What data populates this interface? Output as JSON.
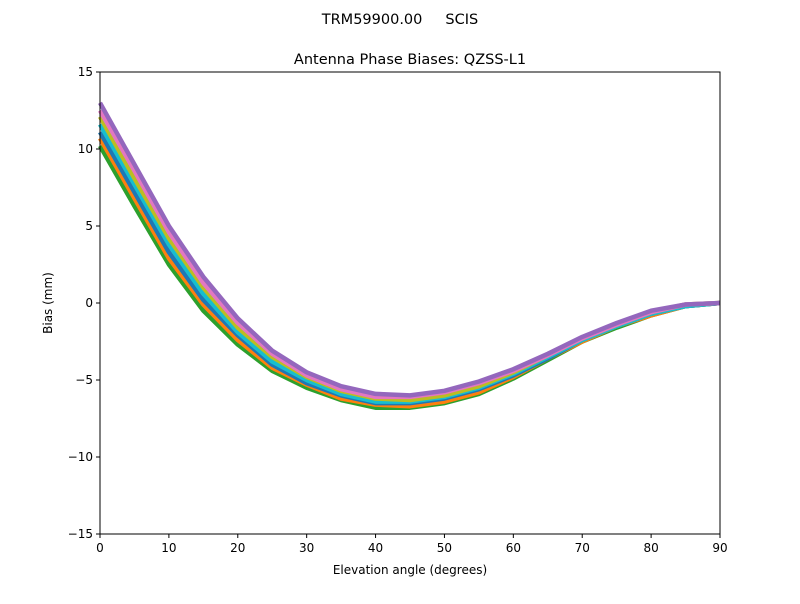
{
  "chart_data": {
    "type": "line",
    "suptitle": "TRM59900.00     SCIS",
    "title": "Antenna Phase Biases: QZSS-L1",
    "xlabel": "Elevation angle (degrees)",
    "ylabel": "Bias (mm)",
    "xlim": [
      0,
      90
    ],
    "ylim": [
      -15,
      15
    ],
    "xticks": [
      0,
      10,
      20,
      30,
      40,
      50,
      60,
      70,
      80,
      90
    ],
    "yticks": [
      -15,
      -10,
      -5,
      0,
      5,
      10,
      15
    ],
    "ytick_labels": [
      "−15",
      "−10",
      "−5",
      "0",
      "5",
      "10",
      "15"
    ],
    "grid": false,
    "colors": [
      "#2ca02c",
      "#ff7f0e",
      "#1f77b4",
      "#17becf",
      "#bcbd22",
      "#e377c2",
      "#9467bd"
    ],
    "x": [
      0,
      5,
      10,
      15,
      20,
      25,
      30,
      35,
      40,
      45,
      50,
      55,
      60,
      65,
      70,
      75,
      80,
      85,
      90
    ],
    "series": [
      {
        "values": [
          10.2,
          6.3,
          2.5,
          -0.5,
          -2.7,
          -4.4,
          -5.5,
          -6.3,
          -6.8,
          -6.8,
          -6.5,
          -5.9,
          -4.9,
          -3.7,
          -2.5,
          -1.6,
          -0.8,
          -0.2,
          0
        ]
      },
      {
        "values": [
          10.7,
          6.8,
          2.9,
          -0.1,
          -2.4,
          -4.2,
          -5.3,
          -6.2,
          -6.6,
          -6.7,
          -6.4,
          -5.8,
          -4.8,
          -3.6,
          -2.5,
          -1.5,
          -0.8,
          -0.2,
          0
        ]
      },
      {
        "values": [
          11.1,
          7.2,
          3.3,
          0.2,
          -2.1,
          -4.0,
          -5.2,
          -6.0,
          -6.5,
          -6.5,
          -6.2,
          -5.6,
          -4.7,
          -3.6,
          -2.4,
          -1.5,
          -0.7,
          -0.2,
          0
        ]
      },
      {
        "values": [
          11.6,
          7.7,
          3.8,
          0.6,
          -1.9,
          -3.8,
          -5.0,
          -5.9,
          -6.4,
          -6.4,
          -6.1,
          -5.5,
          -4.6,
          -3.5,
          -2.4,
          -1.5,
          -0.7,
          -0.2,
          0
        ]
      },
      {
        "values": [
          12.1,
          8.1,
          4.2,
          1.0,
          -1.6,
          -3.5,
          -4.8,
          -5.7,
          -6.2,
          -6.3,
          -6.0,
          -5.4,
          -4.5,
          -3.4,
          -2.3,
          -1.4,
          -0.6,
          -0.1,
          0
        ]
      },
      {
        "values": [
          12.5,
          8.6,
          4.6,
          1.3,
          -1.3,
          -3.3,
          -4.7,
          -5.6,
          -6.1,
          -6.1,
          -5.8,
          -5.2,
          -4.4,
          -3.4,
          -2.3,
          -1.4,
          -0.6,
          -0.1,
          0
        ]
      },
      {
        "values": [
          13.0,
          9.0,
          5.0,
          1.7,
          -1.0,
          -3.1,
          -4.5,
          -5.4,
          -5.9,
          -6.0,
          -5.7,
          -5.1,
          -4.3,
          -3.3,
          -2.2,
          -1.3,
          -0.5,
          -0.1,
          0
        ]
      }
    ]
  }
}
